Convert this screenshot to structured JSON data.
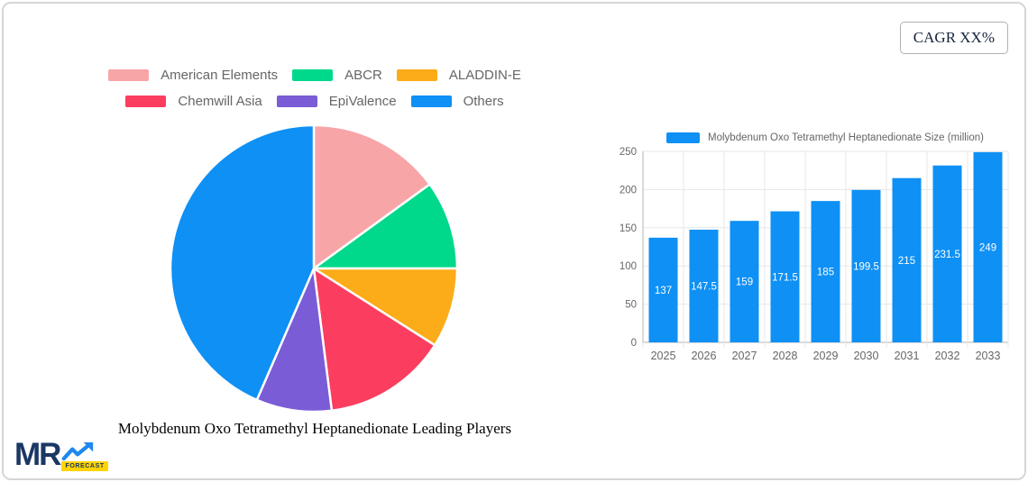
{
  "badge": {
    "label": "CAGR XX%"
  },
  "logo": {
    "text": "MR",
    "sub_text": "FORECAST",
    "brand_navy": "#1b3764",
    "brand_blue": "#1e88f0",
    "brand_yellow": "#ffd400"
  },
  "chart_data": [
    {
      "type": "pie",
      "title": "Molybdenum Oxo Tetramethyl Heptanedionate Leading Players",
      "legend_position": "top",
      "start_angle": "12 o'clock, clockwise",
      "slices": [
        {
          "label": "American Elements",
          "percent": 15,
          "color": "#F8A5A8"
        },
        {
          "label": "ABCR",
          "percent": 10,
          "color": "#00D98B"
        },
        {
          "label": "ALADDIN-E",
          "percent": 9,
          "color": "#FBAC18"
        },
        {
          "label": "Chemwill Asia",
          "percent": 14,
          "color": "#FB3E5F"
        },
        {
          "label": "EpiValence",
          "percent": 8.5,
          "color": "#7A5CD6"
        },
        {
          "label": "Others",
          "percent": 43.5,
          "color": "#0E90F5"
        }
      ]
    },
    {
      "type": "bar",
      "series_label": "Molybdenum Oxo Tetramethyl Heptanedionate Size (million)",
      "categories": [
        "2025",
        "2026",
        "2027",
        "2028",
        "2029",
        "2030",
        "2031",
        "2032",
        "2033"
      ],
      "values": [
        137,
        147.5,
        159,
        171.5,
        185,
        199.5,
        215,
        231.5,
        249
      ],
      "bar_color": "#0E90F5",
      "ylim": [
        0,
        250
      ],
      "yticks": [
        0,
        50,
        100,
        150,
        200,
        250
      ],
      "grid": true,
      "legend_position": "top",
      "value_label_style": "white, centered inside bar"
    }
  ]
}
